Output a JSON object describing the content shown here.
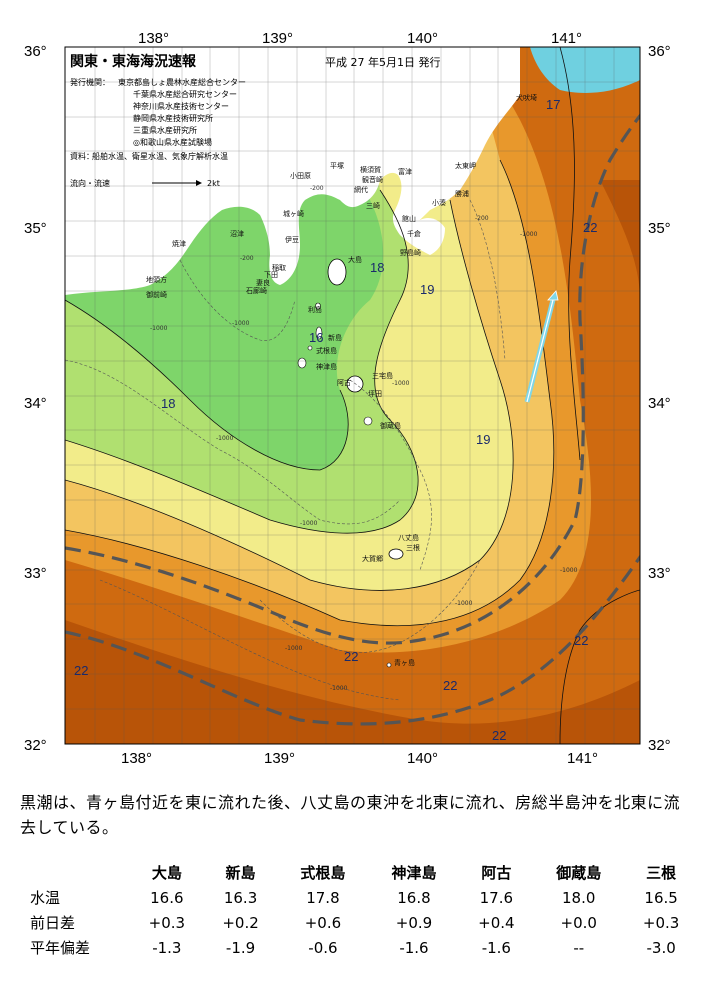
{
  "title": "関東・東海海況速報",
  "issue_date": "平成 27 年5月1日 発行",
  "publisher_label": "発行機関：",
  "publishers": [
    "東京都島しょ農林水産総合センター",
    "千葉県水産総合研究センター",
    "神奈川県水産技術センター",
    "静岡県水産技術研究所",
    "三重県水産研究所",
    "◎和歌山県水産試験場"
  ],
  "sources_label": "資料：",
  "sources": "船舶水温、衛星水温、気象庁解析水温",
  "legend_label": "流向・流速",
  "legend_scale": "2kt",
  "axes": {
    "lon_ticks": [
      "138°",
      "139°",
      "140°",
      "141°"
    ],
    "lat_ticks": [
      "36°",
      "35°",
      "34°",
      "33°",
      "32°"
    ]
  },
  "isotherm_labels": [
    "17",
    "22",
    "18",
    "19",
    "18",
    "19",
    "22",
    "22",
    "22",
    "22",
    "22",
    "16"
  ],
  "depth_labels": [
    "-200",
    "-1000",
    "-200",
    "-1000",
    "-1000",
    "-1000",
    "-200",
    "-1000",
    "-1000",
    "-1000",
    "-1000",
    "-1000",
    "-1000"
  ],
  "places": {
    "inubozaki": "犬吠埼",
    "taitomisaki": "太東岬",
    "katsuura": "勝浦",
    "kominato": "小湊",
    "tateyama": "館山",
    "chikura": "千倉",
    "nojimazaki": "野島崎",
    "futtsu": "富津",
    "kannonzaki": "観音崎",
    "yokosuka": "横須賀",
    "hiratsuka": "平塚",
    "odawara": "小田原",
    "ajiro": "網代",
    "jogasaki": "城ヶ崎",
    "misaki": "三崎",
    "izu": "伊豆",
    "numazu": "沼津",
    "yaizu": "焼津",
    "omaezaki": "御前崎",
    "chikyu": "地頭方",
    "inatori": "稲取",
    "shimoda": "下田",
    "mera": "妻良",
    "irozaki": "石廊崎",
    "oshima": "大島",
    "toshima": "利島",
    "niijima": "新島",
    "shikinejima": "式根島",
    "kozushima": "神津島",
    "miyakejima": "三宅島",
    "mikurajima": "御蔵島",
    "ahogo": "阿古",
    "tsubota": "坪田",
    "hachijojima": "八丈島",
    "mitsune": "三根",
    "okago": "大賀郷",
    "aogashima": "青ヶ島"
  },
  "colors": {
    "cold_green": "#7ed56a",
    "mid_green": "#b0e070",
    "yellow": "#f2ec8a",
    "light_orange": "#f3c560",
    "orange": "#e8982c",
    "deep_orange": "#cf6a10",
    "brown": "#b85408",
    "current_arrow": "#7fd6e8",
    "kuroshio_axis": "#555555",
    "coastal_cyan": "#6fd0e0",
    "land": "#ffffff"
  },
  "summary": "黒潮は、青ヶ島付近を東に流れた後、八丈島の東沖を北東に流れ、房総半島沖を北東に流去している。",
  "stats": {
    "stations": [
      "大島",
      "新島",
      "式根島",
      "神津島",
      "阿古",
      "御蔵島",
      "三根"
    ],
    "rows": [
      {
        "label": "水温",
        "values": [
          "16.6",
          "16.3",
          "17.8",
          "16.8",
          "17.6",
          "18.0",
          "16.5"
        ]
      },
      {
        "label": "前日差",
        "values": [
          "+0.3",
          "+0.2",
          "+0.6",
          "+0.9",
          "+0.4",
          "+0.0",
          "+0.3"
        ]
      },
      {
        "label": "平年偏差",
        "values": [
          "-1.3",
          "-1.9",
          "-0.6",
          "-1.6",
          "-1.6",
          "--",
          "-3.0"
        ]
      }
    ]
  }
}
